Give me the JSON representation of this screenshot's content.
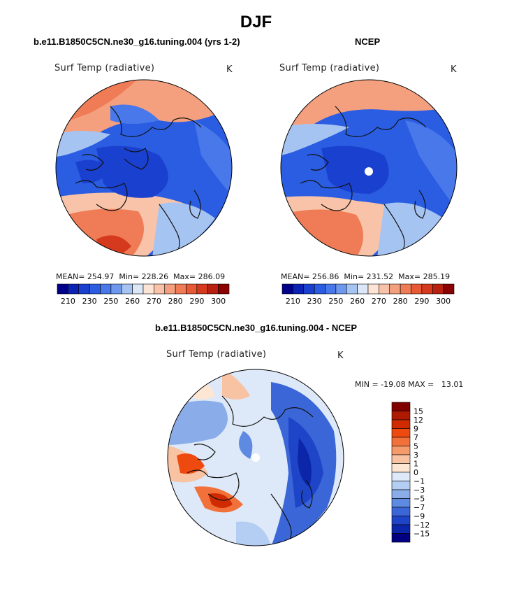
{
  "main_title": "DJF",
  "panels": [
    {
      "title": "b.e11.B1850C5CN.ne30_g16.tuning.004 (yrs 1-2)",
      "variable": "Surf Temp (radiative)",
      "units": "K",
      "stats": {
        "mean_label": "MEAN=",
        "mean": "254.97",
        "min_label": "Min=",
        "min": "228.26",
        "max_label": "Max=",
        "max": "286.09"
      }
    },
    {
      "title": "NCEP",
      "variable": "Surf Temp (radiative)",
      "units": "K",
      "stats": {
        "mean_label": "MEAN=",
        "mean": "256.86",
        "min_label": "Min=",
        "min": "231.52",
        "max_label": "Max=",
        "max": "285.19"
      }
    }
  ],
  "abs_colorbar": {
    "colors": [
      "#00008b",
      "#0a23b5",
      "#1a40d0",
      "#2a5de2",
      "#4878ea",
      "#6e98ee",
      "#a6c4f2",
      "#dce8f8",
      "#fce4d6",
      "#f8c3a8",
      "#f4a07e",
      "#ef7c56",
      "#e85a35",
      "#d63a1e",
      "#b8200f",
      "#8b0000"
    ],
    "labels": [
      "210",
      "230",
      "250",
      "260",
      "270",
      "280",
      "290",
      "300"
    ]
  },
  "diff_panel": {
    "title": "b.e11.B1850C5CN.ne30_g16.tuning.004 - NCEP",
    "variable": "Surf Temp (radiative)",
    "units": "K",
    "minmax": "MIN = -19.08 MAX =   13.01"
  },
  "diff_colorbar": {
    "colors": [
      "#800000",
      "#ad1a00",
      "#d02a00",
      "#ee4a10",
      "#f2703a",
      "#f59a6a",
      "#f8c3a2",
      "#fde6d3",
      "#dde9f8",
      "#b4cdf2",
      "#8aadea",
      "#5f8ae2",
      "#3a66d8",
      "#1e44c8",
      "#0b26a8",
      "#000080"
    ],
    "labels": [
      "15",
      "12",
      "9",
      "7",
      "5",
      "3",
      "1",
      "0",
      "−1",
      "−3",
      "−5",
      "−7",
      "−9",
      "−12",
      "−15"
    ]
  }
}
